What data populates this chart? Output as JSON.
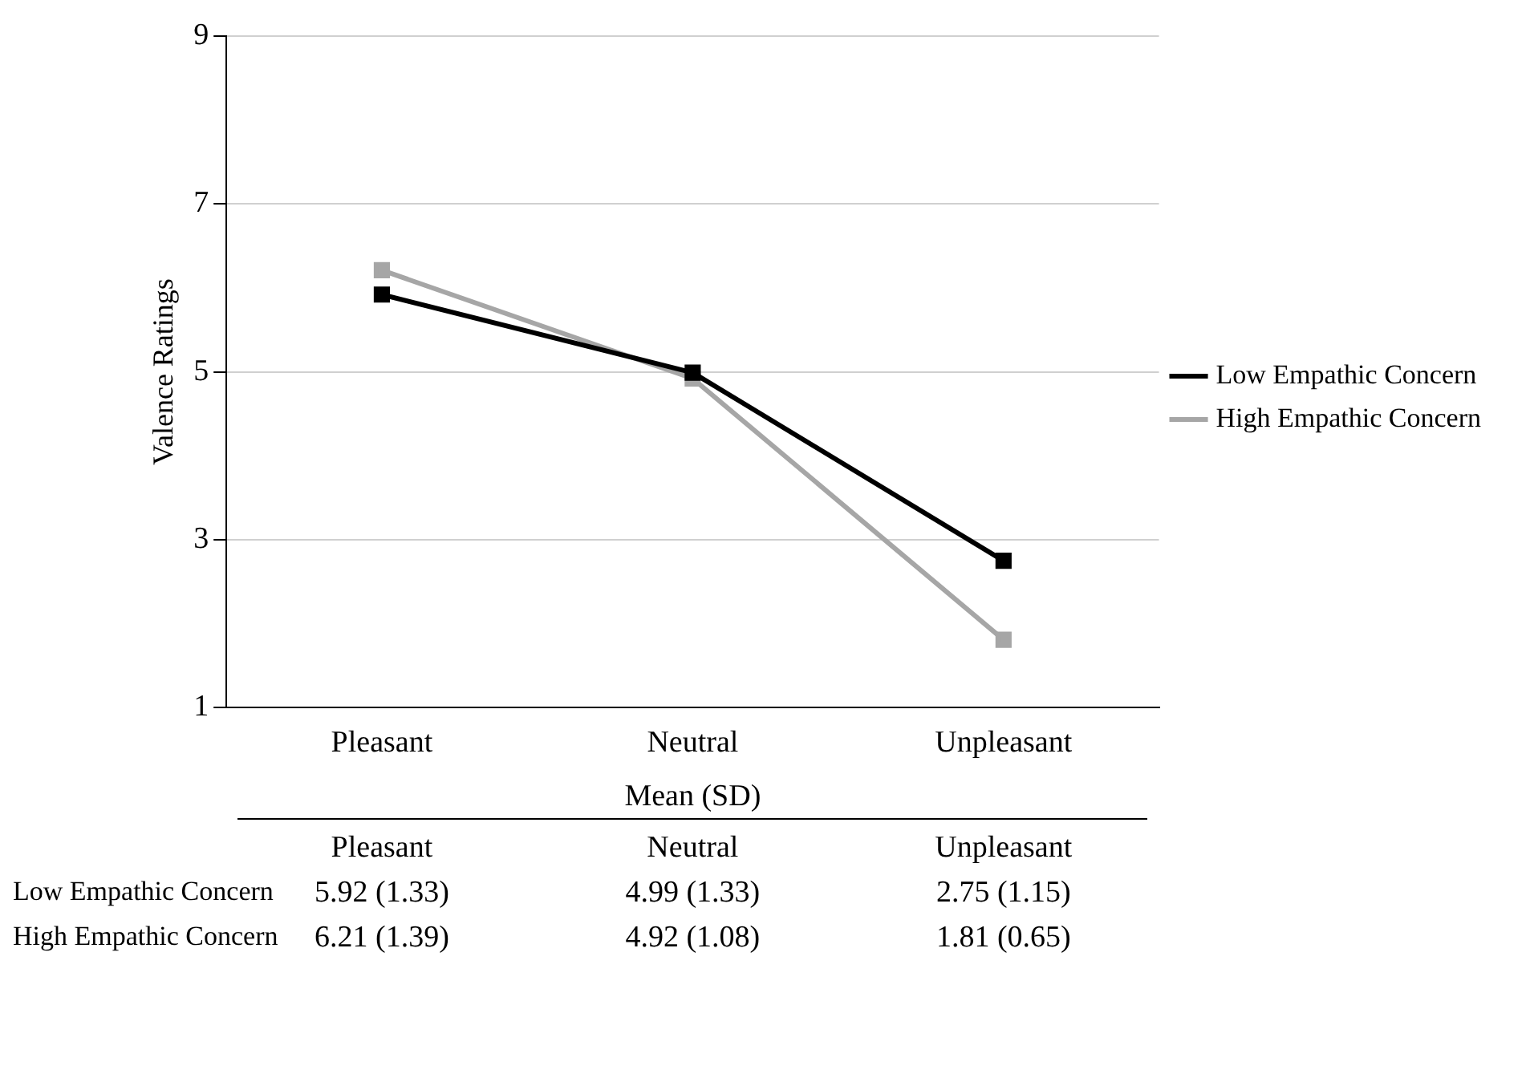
{
  "chart_data": {
    "type": "line",
    "ylabel": "Valence Ratings",
    "categories": [
      "Pleasant",
      "Neutral",
      "Unpleasant"
    ],
    "series": [
      {
        "name": "Low Empathic Concern",
        "color": "#000000",
        "values": [
          5.92,
          4.99,
          2.75
        ],
        "value_labels": [
          "5.92 (1.33)",
          "4.99 (1.33)",
          "2.75 (1.15)"
        ]
      },
      {
        "name": "High Empathic Concern",
        "color": "#a6a6a6",
        "values": [
          6.21,
          4.92,
          1.81
        ],
        "value_labels": [
          "6.21 (1.39)",
          "4.92 (1.08)",
          "1.81 (0.65)"
        ]
      }
    ],
    "ylim": [
      1,
      9
    ],
    "yticks": [
      1,
      3,
      5,
      7,
      9
    ],
    "grid": "y",
    "legend": "right",
    "marker": "square",
    "line_style": "solid",
    "annotations": [
      "Mean (SD)"
    ]
  }
}
